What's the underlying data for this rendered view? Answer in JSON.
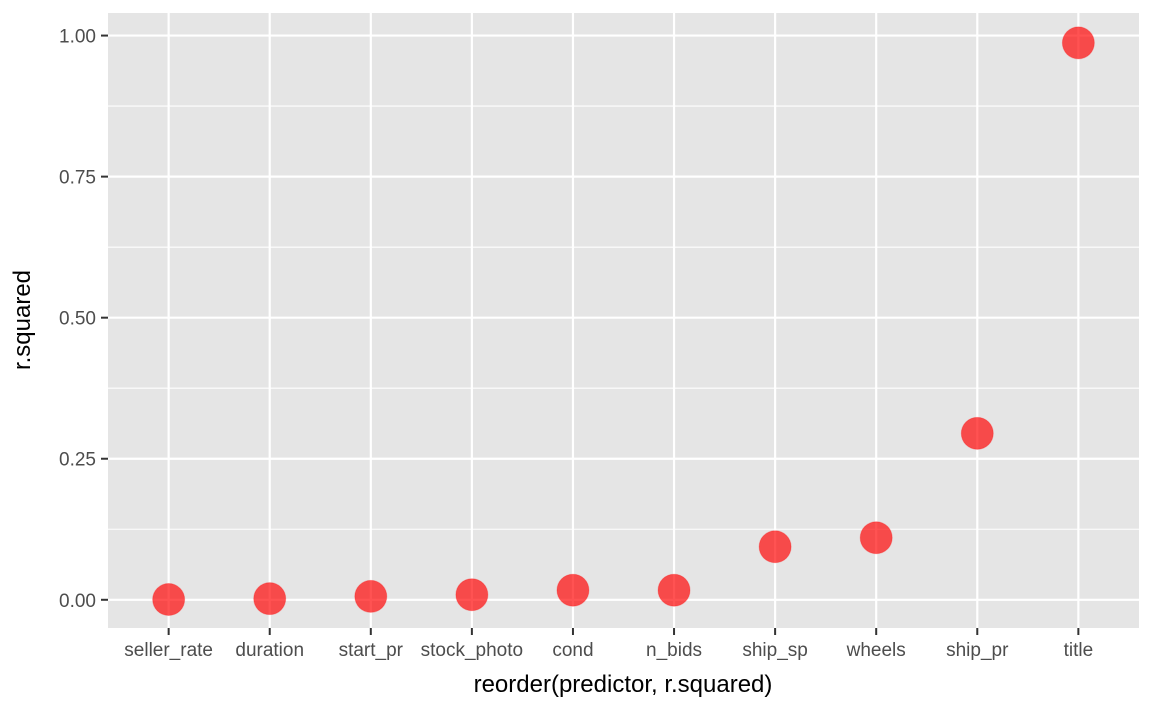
{
  "chart_data": {
    "type": "scatter",
    "title": "",
    "xlabel": "reorder(predictor, r.squared)",
    "ylabel": "r.squared",
    "categories": [
      "seller_rate",
      "duration",
      "start_pr",
      "stock_photo",
      "cond",
      "n_bids",
      "ship_sp",
      "wheels",
      "ship_pr",
      "title"
    ],
    "values": [
      0.0005,
      0.002,
      0.006,
      0.009,
      0.017,
      0.017,
      0.094,
      0.11,
      0.295,
      0.987
    ],
    "ylim": [
      -0.05,
      1.04
    ],
    "yticks": [
      0.0,
      0.25,
      0.5,
      0.75,
      1.0
    ],
    "ytick_labels": [
      "0.00",
      "0.25",
      "0.50",
      "0.75",
      "1.00"
    ],
    "grid": true,
    "legend": "none",
    "colors": {
      "panel": "#e5e5e5",
      "grid": "#ffffff",
      "point": "#ff0000",
      "axis_text": "#4d4d4d"
    }
  }
}
